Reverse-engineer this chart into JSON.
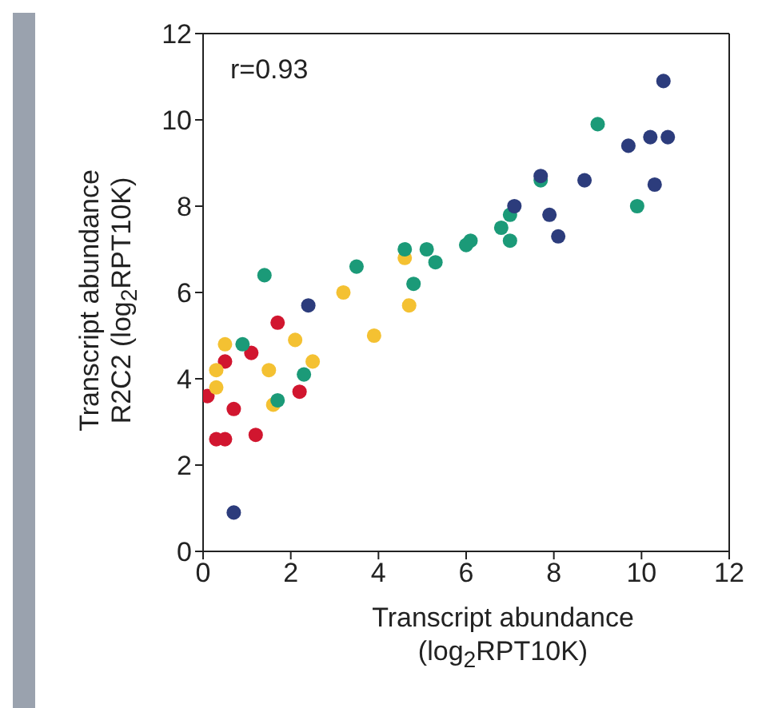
{
  "chart_data": {
    "type": "scatter",
    "xlabel": "Transcript abundance (log$_{2}$RPT10K)",
    "ylabel": "Transcript abundance R2C2 (log$_{2}$RPT10K)",
    "annotations": [
      "r=0.93"
    ],
    "xlim": [
      0,
      12
    ],
    "ylim": [
      0,
      12
    ],
    "xticks": [
      0,
      2,
      4,
      6,
      8,
      10,
      12
    ],
    "yticks": [
      0,
      2,
      4,
      6,
      8,
      10,
      12
    ],
    "marker": "circle",
    "series": [
      {
        "color": "#2c3c7c",
        "x": [
          10.5,
          10.2,
          10.6,
          9.7,
          10.3,
          8.7,
          7.7,
          7.9,
          8.1,
          7.1,
          2.4,
          0.7
        ],
        "values": [
          10.9,
          9.6,
          9.6,
          9.4,
          8.5,
          8.6,
          8.7,
          7.8,
          7.3,
          8.0,
          5.7,
          0.9
        ]
      },
      {
        "color": "#1b9a78",
        "x": [
          9.0,
          9.9,
          7.7,
          7.0,
          6.8,
          7.0,
          6.1,
          6.0,
          4.6,
          5.1,
          5.3,
          3.5,
          1.4,
          4.8,
          0.9,
          2.3,
          1.7
        ],
        "values": [
          9.9,
          8.0,
          8.6,
          7.8,
          7.5,
          7.2,
          7.2,
          7.1,
          7.0,
          7.0,
          6.7,
          6.6,
          6.4,
          6.2,
          4.8,
          4.1,
          3.5
        ]
      },
      {
        "color": "#f4c132",
        "x": [
          4.6,
          3.2,
          4.7,
          3.9,
          2.1,
          0.5,
          2.5,
          0.3,
          1.5,
          0.3,
          1.6
        ],
        "values": [
          6.8,
          6.0,
          5.7,
          5.0,
          4.9,
          4.8,
          4.4,
          4.2,
          4.2,
          3.8,
          3.4
        ]
      },
      {
        "color": "#d1162f",
        "x": [
          1.7,
          1.1,
          0.5,
          0.1,
          2.2,
          0.7,
          1.2,
          0.3,
          0.5
        ],
        "values": [
          5.3,
          4.6,
          4.4,
          3.6,
          3.7,
          3.3,
          2.7,
          2.6,
          2.6
        ]
      }
    ]
  }
}
